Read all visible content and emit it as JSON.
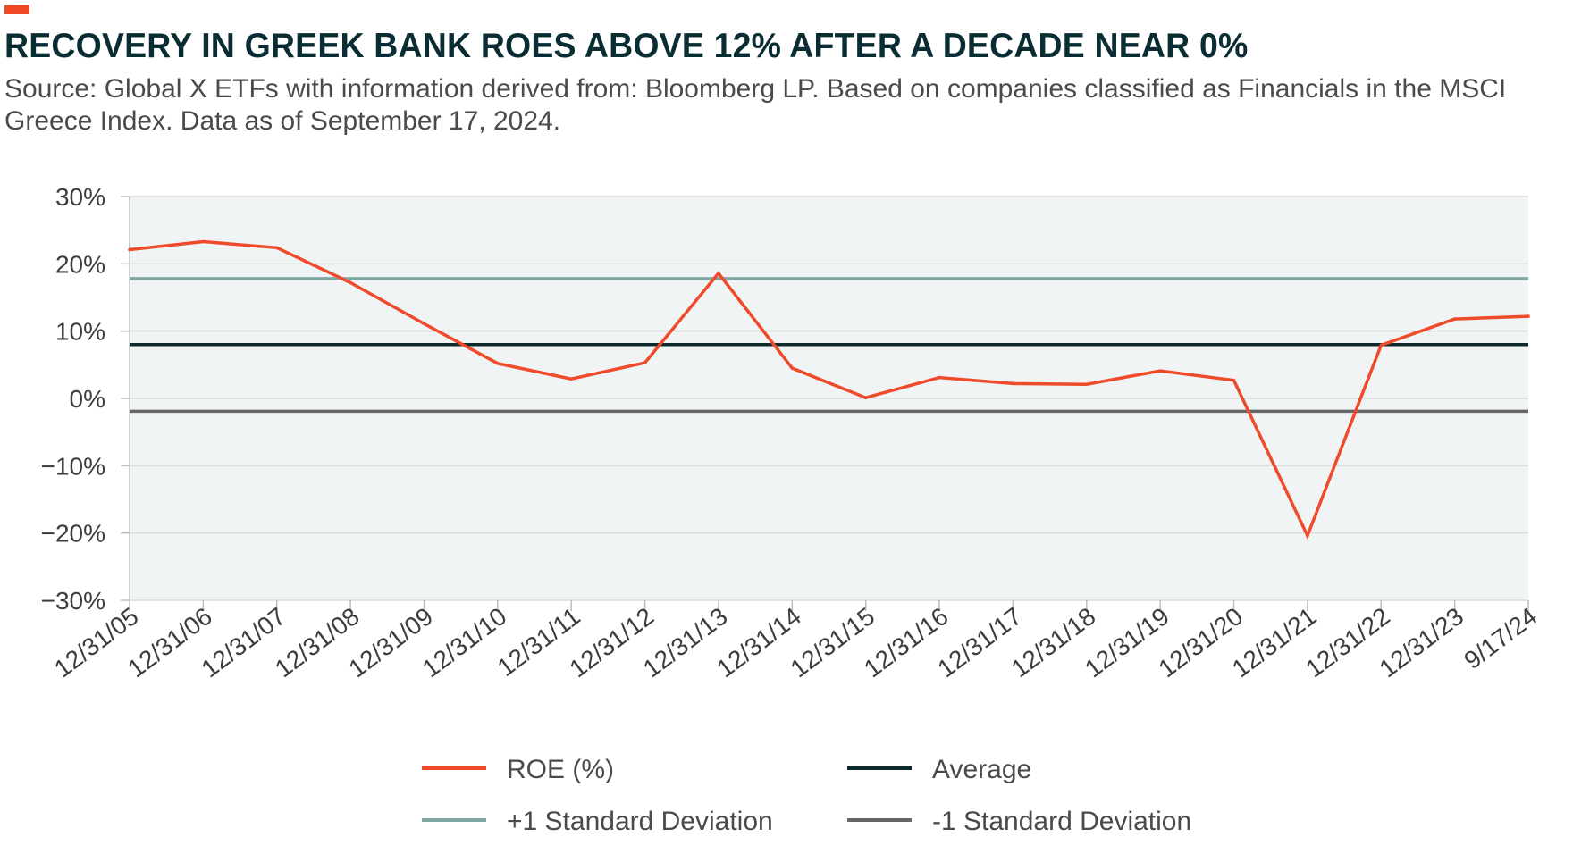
{
  "title": "RECOVERY IN GREEK BANK ROES ABOVE 12% AFTER A DECADE NEAR 0%",
  "subtitle": "Source: Global X ETFs with information derived from: Bloomberg LP. Based on companies classified as Financials in the MSCI Greece Index. Data as of September 17, 2024.",
  "colors": {
    "accent": "#ee4a2a",
    "roe": "#ef4b2b",
    "plus_sd": "#7fa7a3",
    "average": "#0d2a2a",
    "minus_sd": "#666666",
    "plot_bg": "#f1f4f4",
    "grid": "#d8dcdc"
  },
  "chart_data": {
    "type": "line",
    "title": "RECOVERY IN GREEK BANK ROES ABOVE 12% AFTER A DECADE NEAR 0%",
    "xlabel": "",
    "ylabel": "",
    "ylim": [
      -30,
      30
    ],
    "y_ticks": [
      30,
      20,
      10,
      0,
      -10,
      -20,
      -30
    ],
    "y_tick_labels": [
      "30%",
      "20%",
      "10%",
      "0%",
      "−10%",
      "−20%",
      "−30%"
    ],
    "grid": true,
    "legend_position": "bottom",
    "categories": [
      "12/31/05",
      "12/31/06",
      "12/31/07",
      "12/31/08",
      "12/31/09",
      "12/31/10",
      "12/31/11",
      "12/31/12",
      "12/31/13",
      "12/31/14",
      "12/31/15",
      "12/31/16",
      "12/31/17",
      "12/31/18",
      "12/31/19",
      "12/31/20",
      "12/31/21",
      "12/31/22",
      "12/31/23",
      "9/17/24"
    ],
    "series": [
      {
        "name": "ROE (%)",
        "values": [
          22.1,
          23.3,
          22.4,
          17.2,
          11.1,
          5.2,
          2.9,
          5.3,
          18.6,
          4.5,
          0.1,
          3.1,
          2.2,
          2.1,
          4.1,
          2.7,
          -20.4,
          7.9,
          11.8,
          12.2
        ]
      },
      {
        "name": "+1 Standard Deviation",
        "constant": 17.8
      },
      {
        "name": "Average",
        "constant": 8.0
      },
      {
        "name": "-1 Standard Deviation",
        "constant": -1.9
      }
    ]
  }
}
